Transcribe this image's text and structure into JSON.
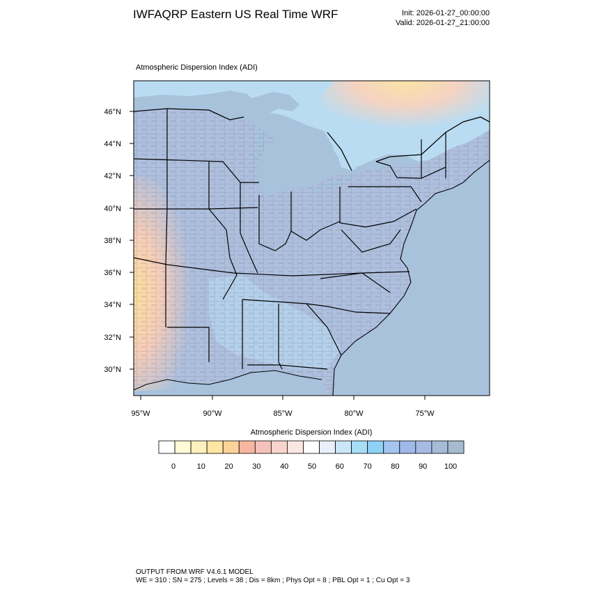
{
  "header": {
    "title": "IWFAQRP Eastern US Real Time WRF",
    "init": "Init: 2026-01-27_00:00:00",
    "valid": "Valid: 2026-01-27_21:00:00"
  },
  "map": {
    "field_title": "Atmospheric Dispersion Index   (ADI)",
    "lat_labels": [
      "46°N",
      "44°N",
      "42°N",
      "40°N",
      "38°N",
      "36°N",
      "34°N",
      "32°N",
      "30°N"
    ],
    "lon_labels": [
      "95°W",
      "90°W",
      "85°W",
      "80°W",
      "75°W"
    ],
    "colors": {
      "water": "#a8c2dc",
      "land_high": "#aebfde",
      "land_mid": "#b9dcf2",
      "land_low": "#f6cdb8",
      "land_vlow": "#f9df9e",
      "border": "#000000"
    }
  },
  "colorbar": {
    "title": "Atmospheric Dispersion Index  (ADI)",
    "labels": [
      "0",
      "10",
      "20",
      "30",
      "40",
      "50",
      "60",
      "70",
      "80",
      "90",
      "100"
    ],
    "colors": [
      "#ffffff",
      "#fffbd6",
      "#fff1bd",
      "#ffe6a5",
      "#fbd39a",
      "#f6b6a0",
      "#f5c1bb",
      "#f9d4cd",
      "#fbe6e2",
      "#ffffff",
      "#e9f0fb",
      "#c9e7f8",
      "#a8ddf7",
      "#8fd0f5",
      "#a4c5f0",
      "#9fb9e8",
      "#a7bae1",
      "#a6bbd8",
      "#a6bbd0"
    ]
  },
  "footer": {
    "line1": "OUTPUT FROM WRF V4.6.1 MODEL",
    "line2": "WE = 310 ; SN = 275 ; Levels = 38 ; Dis = 8km ; Phys Opt = 8 ; PBL Opt = 1 ; Cu Opt = 3"
  }
}
